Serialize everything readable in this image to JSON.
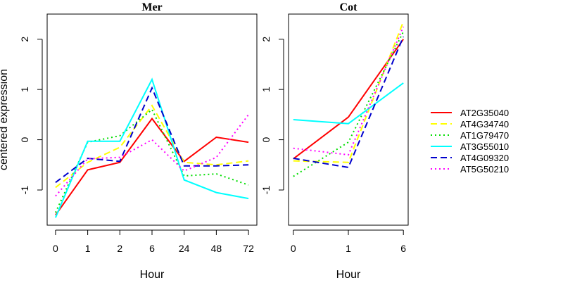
{
  "chart_data": [
    {
      "type": "line",
      "title": "Mer",
      "xlabel": "Hour",
      "ylabel": "centered expression",
      "categories": [
        "0",
        "1",
        "2",
        "6",
        "24",
        "48",
        "72"
      ],
      "ylim": [
        -1.7,
        2.5
      ],
      "yticks": [
        -1,
        0,
        1,
        2
      ],
      "grid": false,
      "series": [
        {
          "name": "AT2G35040",
          "color": "#ff0000",
          "dash": "solid",
          "values": [
            -1.5,
            -0.6,
            -0.45,
            0.42,
            -0.43,
            0.05,
            -0.05
          ]
        },
        {
          "name": "AT4G34740",
          "color": "#ffff00",
          "dash": "dashed",
          "values": [
            -0.95,
            -0.45,
            -0.15,
            0.68,
            -0.45,
            -0.5,
            -0.42
          ]
        },
        {
          "name": "AT1G79470",
          "color": "#00dd00",
          "dash": "dotted",
          "values": [
            -1.45,
            -0.05,
            0.08,
            0.6,
            -0.72,
            -0.68,
            -0.9
          ]
        },
        {
          "name": "AT3G55010",
          "color": "#00ffff",
          "dash": "solid",
          "values": [
            -1.55,
            -0.03,
            -0.03,
            1.2,
            -0.8,
            -1.05,
            -1.17
          ]
        },
        {
          "name": "AT4G09320",
          "color": "#0000cc",
          "dash": "dashed",
          "values": [
            -0.85,
            -0.37,
            -0.43,
            1.03,
            -0.52,
            -0.52,
            -0.5
          ]
        },
        {
          "name": "AT5G50210",
          "color": "#ff00ff",
          "dash": "dotted",
          "values": [
            -1.12,
            -0.38,
            -0.35,
            0.0,
            -0.62,
            -0.35,
            0.5
          ]
        }
      ]
    },
    {
      "type": "line",
      "title": "Cot",
      "xlabel": "Hour",
      "ylabel": "",
      "categories": [
        "0",
        "1",
        "6"
      ],
      "ylim": [
        -1.7,
        2.5
      ],
      "yticks": [
        -1,
        0,
        1,
        2
      ],
      "grid": false,
      "series": [
        {
          "name": "AT2G35040",
          "color": "#ff0000",
          "dash": "solid",
          "values": [
            -0.38,
            0.45,
            2.0
          ]
        },
        {
          "name": "AT4G34740",
          "color": "#ffff00",
          "dash": "dashed",
          "values": [
            -0.42,
            -0.45,
            2.35
          ]
        },
        {
          "name": "AT1G79470",
          "color": "#00dd00",
          "dash": "dotted",
          "values": [
            -0.73,
            -0.05,
            2.15
          ]
        },
        {
          "name": "AT3G55010",
          "color": "#00ffff",
          "dash": "solid",
          "values": [
            0.4,
            0.32,
            1.13
          ]
        },
        {
          "name": "AT4G09320",
          "color": "#0000cc",
          "dash": "dashed",
          "values": [
            -0.37,
            -0.55,
            2.05
          ]
        },
        {
          "name": "AT5G50210",
          "color": "#ff00ff",
          "dash": "dotted",
          "values": [
            -0.17,
            -0.3,
            2.25
          ]
        }
      ]
    }
  ],
  "legend": {
    "placement": "right",
    "entries": [
      {
        "name": "AT2G35040",
        "color": "#ff0000",
        "dash": "solid"
      },
      {
        "name": "AT4G34740",
        "color": "#ffff00",
        "dash": "dashed"
      },
      {
        "name": "AT1G79470",
        "color": "#00dd00",
        "dash": "dotted"
      },
      {
        "name": "AT3G55010",
        "color": "#00ffff",
        "dash": "solid"
      },
      {
        "name": "AT4G09320",
        "color": "#0000cc",
        "dash": "dashed"
      },
      {
        "name": "AT5G50210",
        "color": "#ff00ff",
        "dash": "dotted"
      }
    ]
  }
}
